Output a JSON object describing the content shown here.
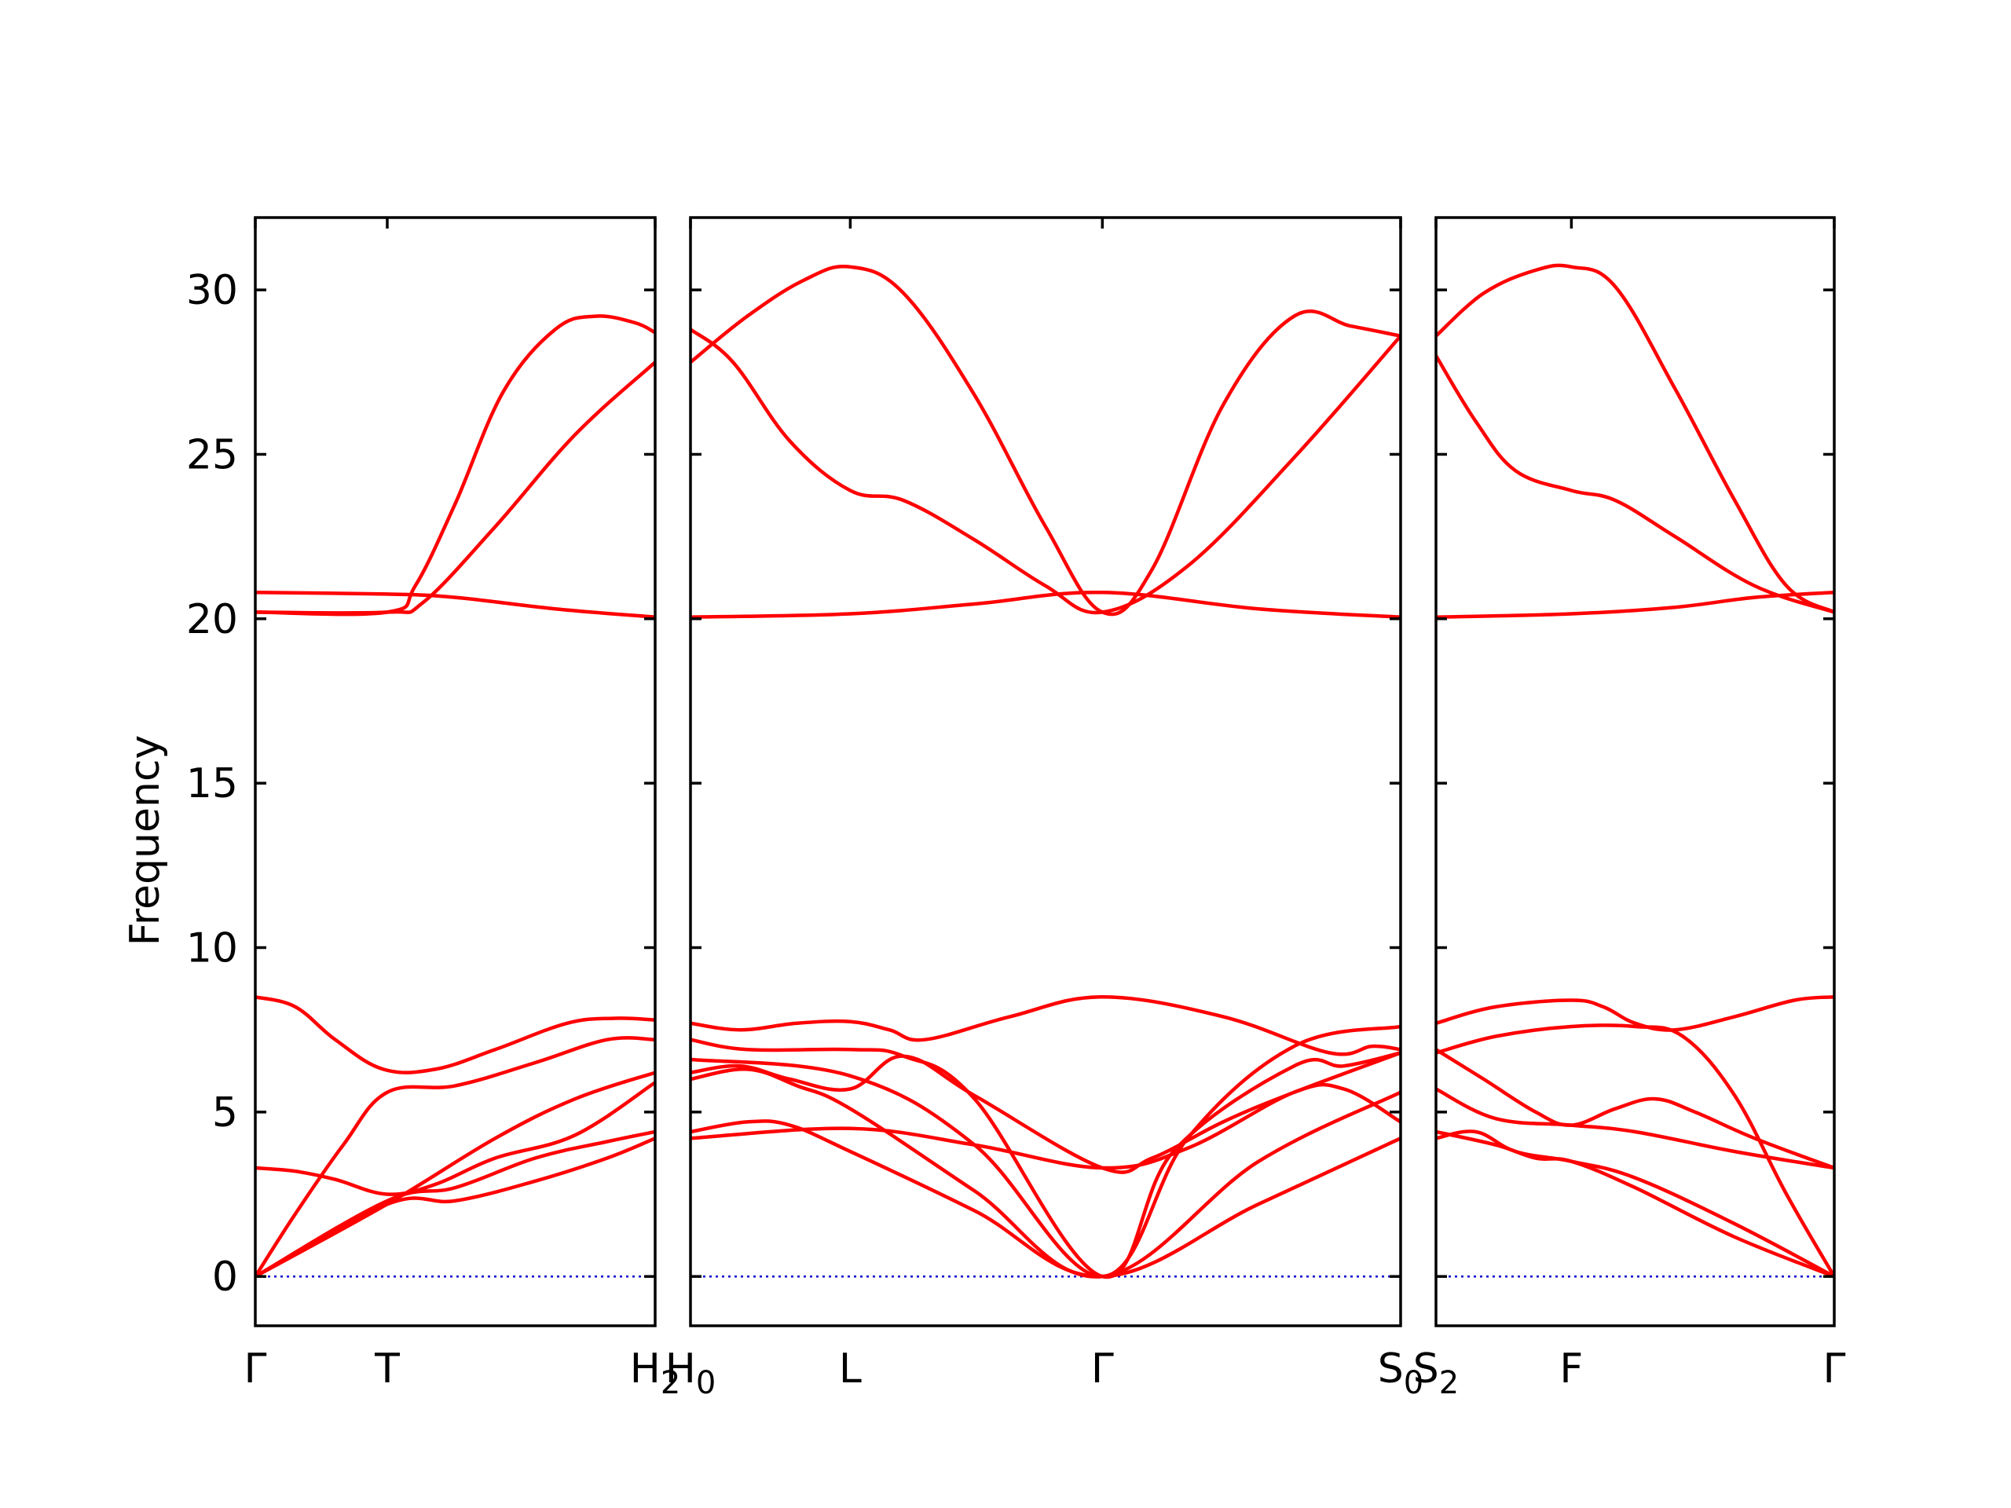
{
  "chart_data": {
    "type": "line",
    "ylabel": "Frequency",
    "ylim": [
      -1.5,
      32.2
    ],
    "yticks": [
      0,
      5,
      10,
      15,
      20,
      25,
      30
    ],
    "grid": false,
    "band_color": "#ff0000",
    "zero_line_color": "#0000cc",
    "panels": [
      {
        "xticks": [
          {
            "x": 0.0,
            "label": "Γ",
            "sub": ""
          },
          {
            "x": 0.33,
            "label": "T",
            "sub": ""
          },
          {
            "x": 1.0,
            "label": "H",
            "sub": "2"
          }
        ],
        "bands": [
          [
            [
              0,
              0
            ],
            [
              0.33,
              2.2
            ],
            [
              0.5,
              2.3
            ],
            [
              0.7,
              2.9
            ],
            [
              0.88,
              3.6
            ],
            [
              1.0,
              4.2
            ]
          ],
          [
            [
              0,
              0
            ],
            [
              0.33,
              2.3
            ],
            [
              0.5,
              2.7
            ],
            [
              0.7,
              3.6
            ],
            [
              0.88,
              4.1
            ],
            [
              1.0,
              4.4
            ]
          ],
          [
            [
              0,
              3.3
            ],
            [
              0.1,
              3.2
            ],
            [
              0.2,
              2.95
            ],
            [
              0.33,
              2.5
            ],
            [
              0.45,
              2.8
            ],
            [
              0.6,
              3.6
            ],
            [
              0.8,
              4.3
            ],
            [
              1.0,
              5.9
            ]
          ],
          [
            [
              0,
              0
            ],
            [
              0.1,
              1.9
            ],
            [
              0.22,
              4.0
            ],
            [
              0.33,
              5.6
            ],
            [
              0.5,
              5.8
            ],
            [
              0.7,
              6.5
            ],
            [
              0.88,
              7.2
            ],
            [
              1.0,
              7.2
            ]
          ],
          [
            [
              0,
              8.5
            ],
            [
              0.1,
              8.2
            ],
            [
              0.2,
              7.2
            ],
            [
              0.32,
              6.3
            ],
            [
              0.45,
              6.3
            ],
            [
              0.6,
              6.9
            ],
            [
              0.78,
              7.7
            ],
            [
              0.9,
              7.85
            ],
            [
              1.0,
              7.8
            ]
          ],
          [
            [
              0,
              0
            ],
            [
              0.33,
              2.2
            ],
            [
              0.6,
              4.2
            ],
            [
              0.8,
              5.4
            ],
            [
              1.0,
              6.2
            ]
          ],
          [
            [
              0,
              20.2
            ],
            [
              0.33,
              20.2
            ],
            [
              0.4,
              21.0
            ],
            [
              0.5,
              23.5
            ],
            [
              0.62,
              26.9
            ],
            [
              0.75,
              28.8
            ],
            [
              0.85,
              29.2
            ],
            [
              0.95,
              29.0
            ],
            [
              1.0,
              28.7
            ]
          ],
          [
            [
              0,
              20.2
            ],
            [
              0.33,
              20.2
            ],
            [
              0.42,
              20.5
            ],
            [
              0.6,
              22.8
            ],
            [
              0.8,
              25.6
            ],
            [
              1.0,
              27.8
            ]
          ],
          [
            [
              0,
              20.8
            ],
            [
              0.33,
              20.75
            ],
            [
              0.5,
              20.65
            ],
            [
              0.75,
              20.3
            ],
            [
              1.0,
              20.05
            ]
          ]
        ]
      },
      {
        "xticks": [
          {
            "x": 0.0,
            "label": "H",
            "sub": "0"
          },
          {
            "x": 0.225,
            "label": "L",
            "sub": ""
          },
          {
            "x": 0.58,
            "label": "Γ",
            "sub": ""
          },
          {
            "x": 1.0,
            "label": "S",
            "sub": "0"
          }
        ],
        "bands": [
          [
            [
              0,
              20.05
            ],
            [
              0.225,
              20.15
            ],
            [
              0.4,
              20.45
            ],
            [
              0.58,
              20.8
            ],
            [
              0.8,
              20.3
            ],
            [
              1.0,
              20.05
            ]
          ],
          [
            [
              0,
              27.8
            ],
            [
              0.08,
              29.2
            ],
            [
              0.16,
              30.3
            ],
            [
              0.225,
              30.7
            ],
            [
              0.3,
              29.9
            ],
            [
              0.4,
              26.8
            ],
            [
              0.5,
              22.8
            ],
            [
              0.58,
              20.2
            ],
            [
              0.65,
              21.5
            ],
            [
              0.75,
              26.5
            ],
            [
              0.85,
              29.2
            ],
            [
              0.93,
              28.9
            ],
            [
              1.0,
              28.6
            ]
          ],
          [
            [
              0,
              28.8
            ],
            [
              0.06,
              27.8
            ],
            [
              0.14,
              25.4
            ],
            [
              0.225,
              23.9
            ],
            [
              0.3,
              23.6
            ],
            [
              0.4,
              22.4
            ],
            [
              0.5,
              21.0
            ],
            [
              0.58,
              20.2
            ],
            [
              0.7,
              21.6
            ],
            [
              0.85,
              24.9
            ],
            [
              1.0,
              28.6
            ]
          ],
          [
            [
              0,
              4.2
            ],
            [
              0.225,
              4.5
            ],
            [
              0.4,
              4.0
            ],
            [
              0.58,
              3.3
            ],
            [
              0.7,
              3.9
            ],
            [
              0.85,
              5.6
            ],
            [
              0.92,
              5.7
            ],
            [
              1.0,
              4.7
            ]
          ],
          [
            [
              0,
              4.4
            ],
            [
              0.08,
              4.7
            ],
            [
              0.14,
              4.6
            ],
            [
              0.225,
              3.8
            ],
            [
              0.4,
              2.0
            ],
            [
              0.58,
              0
            ],
            [
              0.8,
              2.2
            ],
            [
              1.0,
              4.2
            ]
          ],
          [
            [
              0,
              6.0
            ],
            [
              0.08,
              6.3
            ],
            [
              0.15,
              5.8
            ],
            [
              0.225,
              5.1
            ],
            [
              0.4,
              2.6
            ],
            [
              0.58,
              0
            ],
            [
              0.8,
              3.5
            ],
            [
              1.0,
              5.6
            ]
          ],
          [
            [
              0,
              6.2
            ],
            [
              0.07,
              6.4
            ],
            [
              0.14,
              6.0
            ],
            [
              0.225,
              5.7
            ],
            [
              0.3,
              6.7
            ],
            [
              0.4,
              5.5
            ],
            [
              0.58,
              3.3
            ],
            [
              0.65,
              3.6
            ],
            [
              0.75,
              4.7
            ],
            [
              0.85,
              5.6
            ],
            [
              1.0,
              6.8
            ]
          ],
          [
            [
              0,
              7.2
            ],
            [
              0.08,
              6.9
            ],
            [
              0.225,
              6.9
            ],
            [
              0.3,
              6.7
            ],
            [
              0.4,
              5.4
            ],
            [
              0.58,
              0
            ],
            [
              0.68,
              3.8
            ],
            [
              0.85,
              6.4
            ],
            [
              0.92,
              6.4
            ],
            [
              1.0,
              6.8
            ]
          ],
          [
            [
              0,
              7.7
            ],
            [
              0.07,
              7.5
            ],
            [
              0.15,
              7.7
            ],
            [
              0.225,
              7.75
            ],
            [
              0.28,
              7.5
            ],
            [
              0.33,
              7.2
            ],
            [
              0.45,
              7.9
            ],
            [
              0.58,
              8.5
            ],
            [
              0.75,
              7.9
            ],
            [
              0.9,
              6.8
            ],
            [
              0.96,
              7.0
            ],
            [
              1.0,
              6.9
            ]
          ],
          [
            [
              0,
              6.6
            ],
            [
              0.225,
              6.1
            ],
            [
              0.4,
              4.0
            ],
            [
              0.58,
              0
            ],
            [
              0.7,
              4.2
            ],
            [
              0.85,
              7.0
            ],
            [
              1.0,
              7.6
            ]
          ]
        ]
      },
      {
        "xticks": [
          {
            "x": 0.0,
            "label": "S",
            "sub": "2"
          },
          {
            "x": 0.34,
            "label": "F",
            "sub": ""
          },
          {
            "x": 1.0,
            "label": "Γ",
            "sub": ""
          }
        ],
        "bands": [
          [
            [
              0,
              20.05
            ],
            [
              0.34,
              20.15
            ],
            [
              0.6,
              20.35
            ],
            [
              0.8,
              20.65
            ],
            [
              1.0,
              20.8
            ]
          ],
          [
            [
              0,
              28.6
            ],
            [
              0.12,
              29.9
            ],
            [
              0.25,
              30.6
            ],
            [
              0.34,
              30.7
            ],
            [
              0.45,
              30.1
            ],
            [
              0.6,
              27.0
            ],
            [
              0.75,
              23.6
            ],
            [
              0.88,
              21.0
            ],
            [
              1.0,
              20.2
            ]
          ],
          [
            [
              0,
              28.0
            ],
            [
              0.1,
              26.0
            ],
            [
              0.2,
              24.5
            ],
            [
              0.34,
              23.9
            ],
            [
              0.45,
              23.6
            ],
            [
              0.6,
              22.5
            ],
            [
              0.8,
              21.0
            ],
            [
              1.0,
              20.2
            ]
          ],
          [
            [
              0,
              4.2
            ],
            [
              0.1,
              4.4
            ],
            [
              0.2,
              3.8
            ],
            [
              0.34,
              3.5
            ],
            [
              0.5,
              3.0
            ],
            [
              0.75,
              1.6
            ],
            [
              1.0,
              0
            ]
          ],
          [
            [
              0,
              4.4
            ],
            [
              0.15,
              4.0
            ],
            [
              0.25,
              3.6
            ],
            [
              0.34,
              3.5
            ],
            [
              0.5,
              2.7
            ],
            [
              0.75,
              1.2
            ],
            [
              1.0,
              0
            ]
          ],
          [
            [
              0,
              5.7
            ],
            [
              0.15,
              4.8
            ],
            [
              0.34,
              4.6
            ],
            [
              0.5,
              4.4
            ],
            [
              0.75,
              3.8
            ],
            [
              1.0,
              3.3
            ]
          ],
          [
            [
              0,
              6.9
            ],
            [
              0.12,
              6.0
            ],
            [
              0.25,
              5.0
            ],
            [
              0.34,
              4.6
            ],
            [
              0.45,
              5.1
            ],
            [
              0.55,
              5.4
            ],
            [
              0.65,
              5.0
            ],
            [
              0.8,
              4.2
            ],
            [
              1.0,
              3.3
            ]
          ],
          [
            [
              0,
              6.8
            ],
            [
              0.15,
              7.3
            ],
            [
              0.34,
              7.6
            ],
            [
              0.5,
              7.6
            ],
            [
              0.62,
              7.3
            ],
            [
              0.75,
              5.5
            ],
            [
              0.88,
              2.5
            ],
            [
              1.0,
              0
            ]
          ],
          [
            [
              0,
              7.7
            ],
            [
              0.15,
              8.2
            ],
            [
              0.34,
              8.4
            ],
            [
              0.42,
              8.2
            ],
            [
              0.5,
              7.7
            ],
            [
              0.6,
              7.5
            ],
            [
              0.75,
              7.9
            ],
            [
              0.9,
              8.4
            ],
            [
              1.0,
              8.5
            ]
          ]
        ]
      }
    ]
  }
}
